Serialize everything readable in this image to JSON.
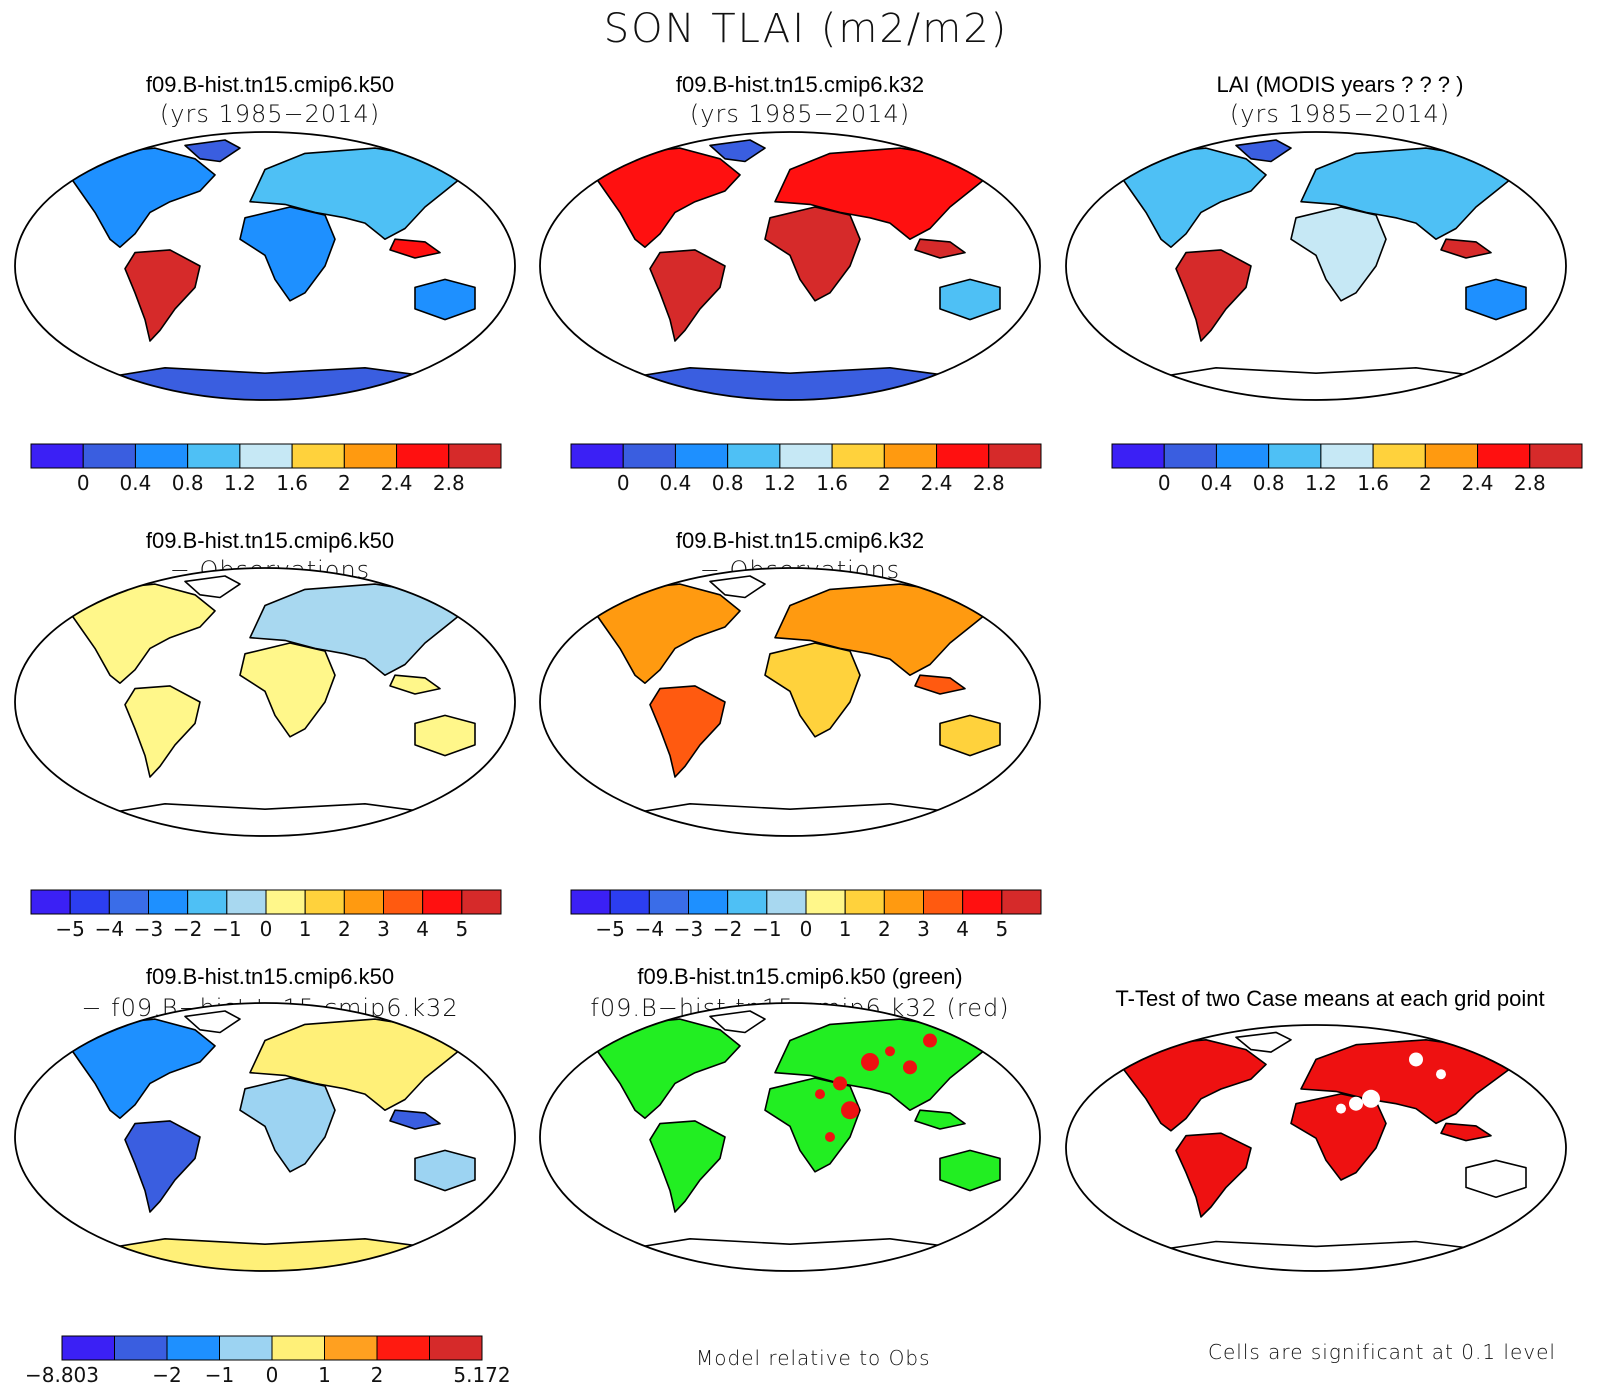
{
  "page_title": "SON TLAI (m2/m2)",
  "colors": {
    "ocean": "#ffffff",
    "coast": "#000000",
    "abs_scale": [
      "#3b20f5",
      "#3a5ee0",
      "#1e90ff",
      "#4ec0f5",
      "#c6e8f5",
      "#ffd23c",
      "#ff9a10",
      "#ff1010",
      "#d62a2a"
    ],
    "diff_scale": [
      "#3b20f5",
      "#2c3ef0",
      "#3a6de8",
      "#1e90ff",
      "#4ec0f5",
      "#a8d8f0",
      "#fff78a",
      "#ffd23c",
      "#ff9a10",
      "#ff5a10",
      "#ff1010",
      "#d62a2a"
    ],
    "case_diff_scale": [
      "#3b20f5",
      "#3a5ee0",
      "#1e90ff",
      "#9cd3f2",
      "#fff078",
      "#ffa020",
      "#ff1a10",
      "#d62a2a"
    ],
    "sig_green": "#22ee22",
    "sig_red": "#ee1111"
  },
  "panels": [
    {
      "id": "p1",
      "title": "f09.B-hist.tn15.cmip6.k50",
      "subtitle": "(yrs 1985−2014)",
      "field": "abs_model1"
    },
    {
      "id": "p2",
      "title": "f09.B-hist.tn15.cmip6.k32",
      "subtitle": "(yrs 1985−2014)",
      "field": "abs_model2"
    },
    {
      "id": "p3",
      "title": "LAI (MODIS years ? ? ? )",
      "subtitle": "(yrs 1985−2014)",
      "field": "abs_obs"
    },
    {
      "id": "p4",
      "title": "f09.B-hist.tn15.cmip6.k50",
      "subtitle": "− Observations",
      "field": "diff_model1_obs"
    },
    {
      "id": "p5",
      "title": "f09.B-hist.tn15.cmip6.k32",
      "subtitle": "− Observations",
      "field": "diff_model2_obs"
    },
    {
      "id": "p7",
      "title": "f09.B-hist.tn15.cmip6.k50",
      "subtitle": "− f09.B−hist.tn15.cmip6.k32",
      "field": "diff_model1_model2"
    },
    {
      "id": "p8",
      "title": "f09.B-hist.tn15.cmip6.k50 (green)",
      "subtitle": "f09.B−hist.tn15.cmip6.k32 (red)",
      "field": "closer_to_obs"
    },
    {
      "id": "p9",
      "title": "T-Test of two Case means at each grid point",
      "subtitle": "",
      "field": "ttest"
    }
  ],
  "colorbars": {
    "abs": {
      "labels": [
        "0",
        "0.4",
        "0.8",
        "1.2",
        "1.6",
        "2",
        "2.4",
        "2.8"
      ]
    },
    "diff": {
      "labels": [
        "−5",
        "−4",
        "−3",
        "−2",
        "−1",
        "0",
        "1",
        "2",
        "3",
        "4",
        "5"
      ]
    },
    "case_diff": {
      "labels": [
        "−8.803",
        "−2",
        "−1",
        "0",
        "1",
        "2",
        "5.172"
      ],
      "label_gaps": [
        0,
        2,
        3,
        4,
        5,
        6,
        8
      ]
    }
  },
  "footnotes": {
    "p8": "Model relative to Obs",
    "p9": "Cells are significant at 0.1 level"
  }
}
